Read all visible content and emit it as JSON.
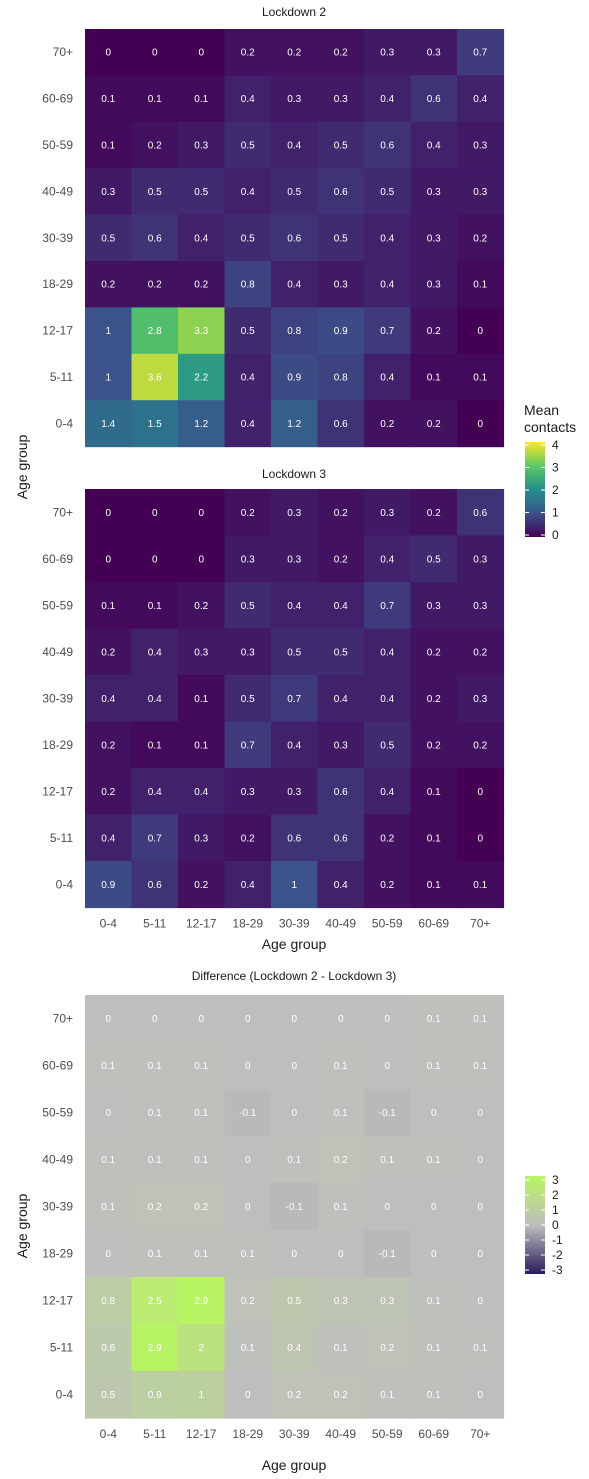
{
  "chart_data": [
    {
      "type": "heatmap",
      "title": "Lockdown 2",
      "xlabel": "",
      "ylabel": "Age group",
      "x_categories": [
        "0-4",
        "5-11",
        "12-17",
        "18-29",
        "30-39",
        "40-49",
        "50-59",
        "60-69",
        "70+"
      ],
      "y_categories_top_to_bottom": [
        "70+",
        "60-69",
        "50-59",
        "40-49",
        "30-39",
        "18-29",
        "12-17",
        "5-11",
        "0-4"
      ],
      "values": [
        [
          0,
          0,
          0,
          0.2,
          0.2,
          0.2,
          0.3,
          0.3,
          0.7
        ],
        [
          0.1,
          0.1,
          0.1,
          0.4,
          0.3,
          0.3,
          0.4,
          0.6,
          0.4
        ],
        [
          0.1,
          0.2,
          0.3,
          0.5,
          0.4,
          0.5,
          0.6,
          0.4,
          0.3
        ],
        [
          0.3,
          0.5,
          0.5,
          0.4,
          0.5,
          0.6,
          0.5,
          0.3,
          0.3
        ],
        [
          0.5,
          0.6,
          0.4,
          0.5,
          0.6,
          0.5,
          0.4,
          0.3,
          0.2
        ],
        [
          0.2,
          0.2,
          0.2,
          0.8,
          0.4,
          0.3,
          0.4,
          0.3,
          0.1
        ],
        [
          1,
          2.8,
          3.3,
          0.5,
          0.8,
          0.9,
          0.7,
          0.2,
          0
        ],
        [
          1,
          3.6,
          2.2,
          0.4,
          0.9,
          0.8,
          0.4,
          0.1,
          0.1
        ],
        [
          1.4,
          1.5,
          1.2,
          0.4,
          1.2,
          0.6,
          0.2,
          0.2,
          0
        ]
      ],
      "scale": "viridis",
      "range": [
        0,
        4
      ]
    },
    {
      "type": "heatmap",
      "title": "Lockdown 3",
      "xlabel": "Age group",
      "ylabel": "",
      "x_categories": [
        "0-4",
        "5-11",
        "12-17",
        "18-29",
        "30-39",
        "40-49",
        "50-59",
        "60-69",
        "70+"
      ],
      "y_categories_top_to_bottom": [
        "70+",
        "60-69",
        "50-59",
        "40-49",
        "30-39",
        "18-29",
        "12-17",
        "5-11",
        "0-4"
      ],
      "values": [
        [
          0,
          0,
          0,
          0.2,
          0.3,
          0.2,
          0.3,
          0.2,
          0.6
        ],
        [
          0,
          0,
          0,
          0.3,
          0.3,
          0.2,
          0.4,
          0.5,
          0.3
        ],
        [
          0.1,
          0.1,
          0.2,
          0.5,
          0.4,
          0.4,
          0.7,
          0.3,
          0.3
        ],
        [
          0.2,
          0.4,
          0.3,
          0.3,
          0.5,
          0.5,
          0.4,
          0.2,
          0.2
        ],
        [
          0.4,
          0.4,
          0.1,
          0.5,
          0.7,
          0.4,
          0.4,
          0.2,
          0.3
        ],
        [
          0.2,
          0.1,
          0.1,
          0.7,
          0.4,
          0.3,
          0.5,
          0.2,
          0.2
        ],
        [
          0.2,
          0.4,
          0.4,
          0.3,
          0.3,
          0.6,
          0.4,
          0.1,
          0
        ],
        [
          0.4,
          0.7,
          0.3,
          0.2,
          0.6,
          0.6,
          0.2,
          0.1,
          0
        ],
        [
          0.9,
          0.6,
          0.2,
          0.4,
          1,
          0.4,
          0.2,
          0.1,
          0.1
        ]
      ],
      "scale": "viridis",
      "range": [
        0,
        4
      ]
    },
    {
      "type": "heatmap",
      "title": "Difference (Lockdown 2 - Lockdown 3)",
      "xlabel": "Age group",
      "ylabel": "Age group",
      "x_categories": [
        "0-4",
        "5-11",
        "12-17",
        "18-29",
        "30-39",
        "40-49",
        "50-59",
        "60-69",
        "70+"
      ],
      "y_categories_top_to_bottom": [
        "70+",
        "60-69",
        "50-59",
        "40-49",
        "30-39",
        "18-29",
        "12-17",
        "5-11",
        "0-4"
      ],
      "values": [
        [
          0,
          0,
          0,
          0,
          0,
          0,
          0,
          0.1,
          0.1
        ],
        [
          0.1,
          0.1,
          0.1,
          0,
          0,
          0.1,
          0,
          0.1,
          0.1
        ],
        [
          0,
          0.1,
          0.1,
          -0.1,
          0,
          0.1,
          -0.1,
          0,
          0
        ],
        [
          0.1,
          0.1,
          0.1,
          0,
          0.1,
          0.2,
          0.1,
          0.1,
          0
        ],
        [
          0.1,
          0.2,
          0.2,
          0,
          -0.1,
          0.1,
          0,
          0,
          0
        ],
        [
          0,
          0.1,
          0.1,
          0.1,
          0,
          0,
          -0.1,
          0,
          0
        ],
        [
          0.8,
          2.5,
          2.9,
          0.2,
          0.5,
          0.3,
          0.3,
          0.1,
          0
        ],
        [
          0.6,
          2.9,
          2,
          0.1,
          0.4,
          0.1,
          0.2,
          0.1,
          0.1
        ],
        [
          0.5,
          0.9,
          1,
          0,
          0.2,
          0.2,
          0.1,
          0.1,
          0
        ]
      ],
      "scale": "diverging",
      "range": [
        -3,
        3
      ]
    }
  ],
  "shared_ylabel": "Age group",
  "legends": {
    "top": {
      "title_line1": "Mean",
      "title_line2": "contacts",
      "ticks": [
        4,
        3,
        2,
        1,
        0
      ]
    },
    "bottom": {
      "ticks": [
        3,
        2,
        1,
        0,
        -1,
        -2,
        -3
      ]
    }
  },
  "colors": {
    "viridis_stops": [
      "#440154",
      "#3b528b",
      "#21908c",
      "#5dc963",
      "#fde725"
    ],
    "diverging_low": "#2a1a5e",
    "diverging_mid": "#bebebe",
    "diverging_high": "#b8f560"
  }
}
